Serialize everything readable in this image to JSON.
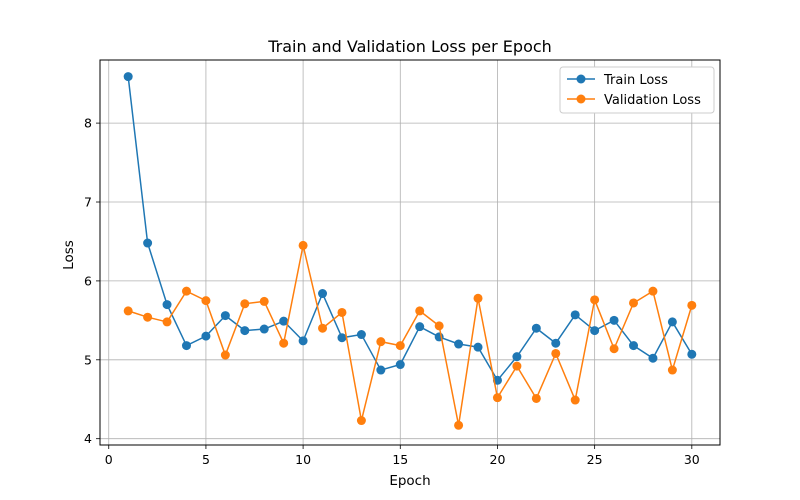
{
  "chart_data": {
    "type": "line",
    "title": "Train and Validation Loss per Epoch",
    "xlabel": "Epoch",
    "ylabel": "Loss",
    "xlim": [
      -0.45,
      31.45
    ],
    "ylim": [
      3.92,
      8.8
    ],
    "xticks": [
      0,
      5,
      10,
      15,
      20,
      25,
      30
    ],
    "yticks": [
      4,
      5,
      6,
      7,
      8
    ],
    "grid": true,
    "legend_position": "top-right",
    "x": [
      1,
      2,
      3,
      4,
      5,
      6,
      7,
      8,
      9,
      10,
      11,
      12,
      13,
      14,
      15,
      16,
      17,
      18,
      19,
      20,
      21,
      22,
      23,
      24,
      25,
      26,
      27,
      28,
      29,
      30
    ],
    "series": [
      {
        "name": "Train Loss",
        "color": "#1f77b4",
        "values": [
          8.59,
          6.48,
          5.7,
          5.18,
          5.3,
          5.56,
          5.37,
          5.39,
          5.49,
          5.24,
          5.84,
          5.28,
          5.32,
          4.87,
          4.94,
          5.42,
          5.29,
          5.2,
          5.16,
          4.74,
          5.04,
          5.4,
          5.21,
          5.57,
          5.37,
          5.5,
          5.18,
          5.02,
          5.48,
          5.07
        ]
      },
      {
        "name": "Validation Loss",
        "color": "#ff7f0e",
        "values": [
          5.62,
          5.54,
          5.48,
          5.87,
          5.75,
          5.06,
          5.71,
          5.74,
          5.21,
          6.45,
          5.4,
          5.6,
          4.23,
          5.23,
          5.18,
          5.62,
          5.43,
          4.17,
          5.78,
          4.52,
          4.92,
          4.51,
          5.08,
          4.49,
          5.76,
          5.14,
          5.72,
          5.87,
          4.87,
          5.69
        ]
      }
    ]
  }
}
